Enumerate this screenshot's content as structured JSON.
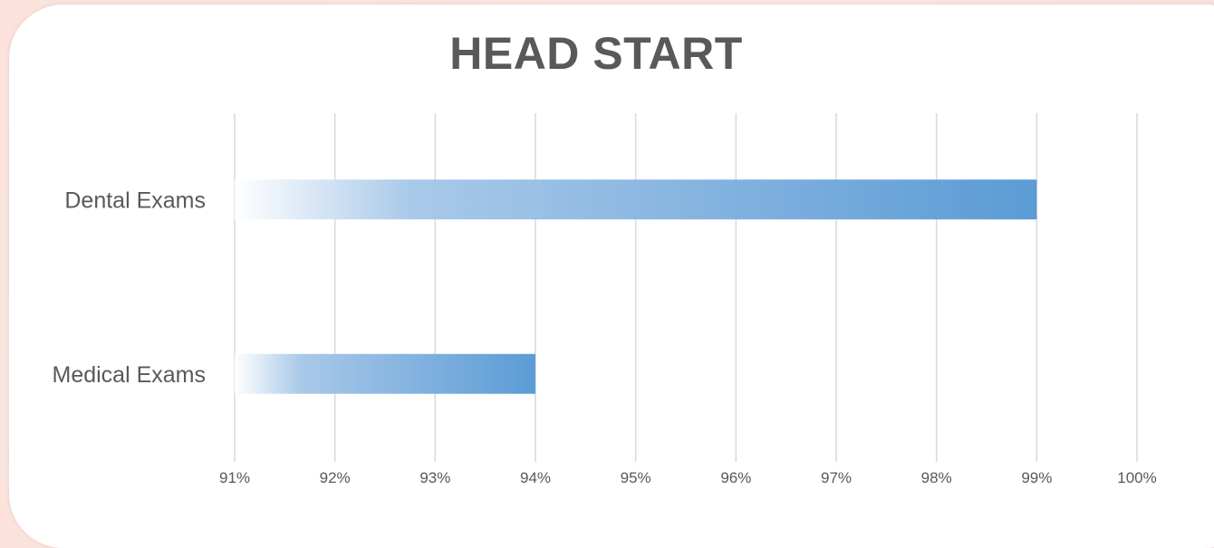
{
  "chart_data": {
    "type": "bar",
    "orientation": "horizontal",
    "title": "HEAD START",
    "categories": [
      "Dental Exams",
      "Medical Exams"
    ],
    "values": [
      99,
      94
    ],
    "unit": "%",
    "xlim": [
      91,
      100
    ],
    "ticks": [
      "91%",
      "92%",
      "93%",
      "94%",
      "95%",
      "96%",
      "97%",
      "98%",
      "99%",
      "100%"
    ],
    "grid": "vertical",
    "bar_color": "#5b9bd5",
    "bar_fill": "gradient-white-to-blue"
  }
}
